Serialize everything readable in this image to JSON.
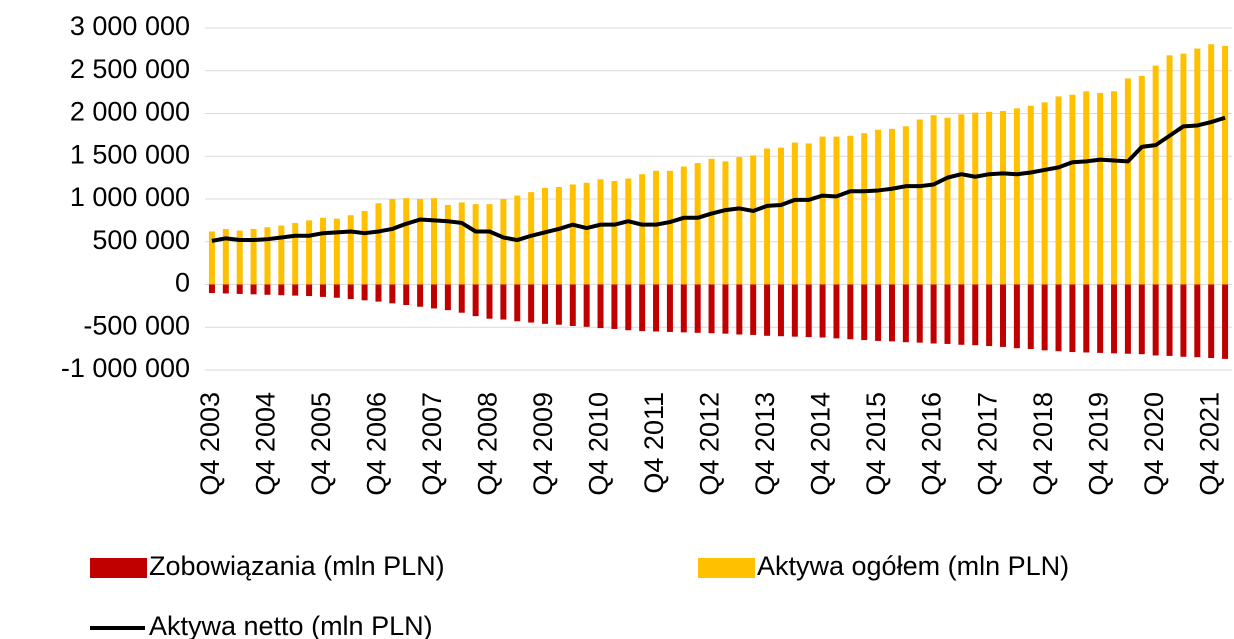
{
  "chart_data": {
    "type": "bar",
    "categories": [
      "Q4 2003",
      null,
      null,
      null,
      "Q4 2004",
      null,
      null,
      null,
      "Q4 2005",
      null,
      null,
      null,
      "Q4 2006",
      null,
      null,
      null,
      "Q4 2007",
      null,
      null,
      null,
      "Q4 2008",
      null,
      null,
      null,
      "Q4 2009",
      null,
      null,
      null,
      "Q4 2010",
      null,
      null,
      null,
      "Q4 2011",
      null,
      null,
      null,
      "Q4 2012",
      null,
      null,
      null,
      "Q4 2013",
      null,
      null,
      null,
      "Q4 2014",
      null,
      null,
      null,
      "Q4 2015",
      null,
      null,
      null,
      "Q4 2016",
      null,
      null,
      null,
      "Q4 2017",
      null,
      null,
      null,
      "Q4 2018",
      null,
      null,
      null,
      "Q4 2019",
      null,
      null,
      null,
      "Q4 2020",
      null,
      null,
      null,
      "Q4 2021",
      null
    ],
    "series": [
      {
        "name": "Zobowiązania (mln PLN)",
        "color": "#c00000",
        "type": "bar",
        "values": [
          -100000,
          -105000,
          -110000,
          -115000,
          -120000,
          -125000,
          -130000,
          -135000,
          -145000,
          -155000,
          -170000,
          -185000,
          -200000,
          -220000,
          -240000,
          -260000,
          -280000,
          -300000,
          -330000,
          -370000,
          -400000,
          -410000,
          -430000,
          -445000,
          -460000,
          -470000,
          -485000,
          -495000,
          -510000,
          -520000,
          -535000,
          -545000,
          -550000,
          -555000,
          -560000,
          -565000,
          -570000,
          -575000,
          -585000,
          -590000,
          -600000,
          -605000,
          -610000,
          -615000,
          -620000,
          -630000,
          -640000,
          -650000,
          -660000,
          -665000,
          -675000,
          -680000,
          -690000,
          -695000,
          -705000,
          -710000,
          -720000,
          -730000,
          -745000,
          -755000,
          -770000,
          -780000,
          -790000,
          -795000,
          -800000,
          -805000,
          -810000,
          -815000,
          -830000,
          -835000,
          -845000,
          -850000,
          -860000,
          -870000
        ]
      },
      {
        "name": "Aktywa ogółem (mln PLN)",
        "color": "#ffc000",
        "type": "bar",
        "values": [
          620000,
          650000,
          630000,
          650000,
          670000,
          690000,
          720000,
          750000,
          780000,
          770000,
          810000,
          860000,
          950000,
          1000000,
          1010000,
          1000000,
          1010000,
          930000,
          960000,
          940000,
          940000,
          1000000,
          1040000,
          1080000,
          1130000,
          1140000,
          1170000,
          1190000,
          1230000,
          1210000,
          1240000,
          1290000,
          1330000,
          1330000,
          1380000,
          1420000,
          1470000,
          1440000,
          1490000,
          1510000,
          1590000,
          1600000,
          1660000,
          1650000,
          1730000,
          1730000,
          1740000,
          1770000,
          1810000,
          1820000,
          1850000,
          1930000,
          1980000,
          1950000,
          1990000,
          2010000,
          2020000,
          2030000,
          2060000,
          2090000,
          2130000,
          2200000,
          2220000,
          2260000,
          2240000,
          2260000,
          2410000,
          2440000,
          2560000,
          2680000,
          2700000,
          2760000,
          2810000,
          2790000
        ]
      },
      {
        "name": "Aktywa netto (mln PLN)",
        "color": "#000000",
        "type": "line",
        "values": [
          510000,
          540000,
          520000,
          520000,
          530000,
          550000,
          570000,
          570000,
          600000,
          610000,
          620000,
          600000,
          620000,
          650000,
          710000,
          760000,
          750000,
          740000,
          720000,
          620000,
          620000,
          550000,
          520000,
          570000,
          610000,
          650000,
          700000,
          660000,
          700000,
          700000,
          740000,
          700000,
          700000,
          730000,
          780000,
          780000,
          830000,
          870000,
          890000,
          860000,
          920000,
          930000,
          990000,
          990000,
          1040000,
          1030000,
          1090000,
          1090000,
          1100000,
          1120000,
          1150000,
          1150000,
          1170000,
          1250000,
          1290000,
          1260000,
          1290000,
          1300000,
          1290000,
          1310000,
          1340000,
          1370000,
          1430000,
          1440000,
          1460000,
          1450000,
          1440000,
          1610000,
          1630000,
          1740000,
          1850000,
          1860000,
          1900000,
          1950000
        ]
      }
    ],
    "ylim": [
      -1000000,
      3000000
    ],
    "yticks": [
      {
        "value": -1000000,
        "label": "-1 000 000"
      },
      {
        "value": -500000,
        "label": "-500 000"
      },
      0,
      {
        "value": 500000,
        "label": "500 000"
      },
      {
        "value": 1000000,
        "label": "1 000 000"
      },
      {
        "value": 1500000,
        "label": "1 500 000"
      },
      {
        "value": 2000000,
        "label": "2 000 000"
      },
      {
        "value": 2500000,
        "label": "2 500 000"
      },
      {
        "value": 3000000,
        "label": "3 000 000"
      }
    ],
    "grid": true,
    "legend": "bottom"
  }
}
